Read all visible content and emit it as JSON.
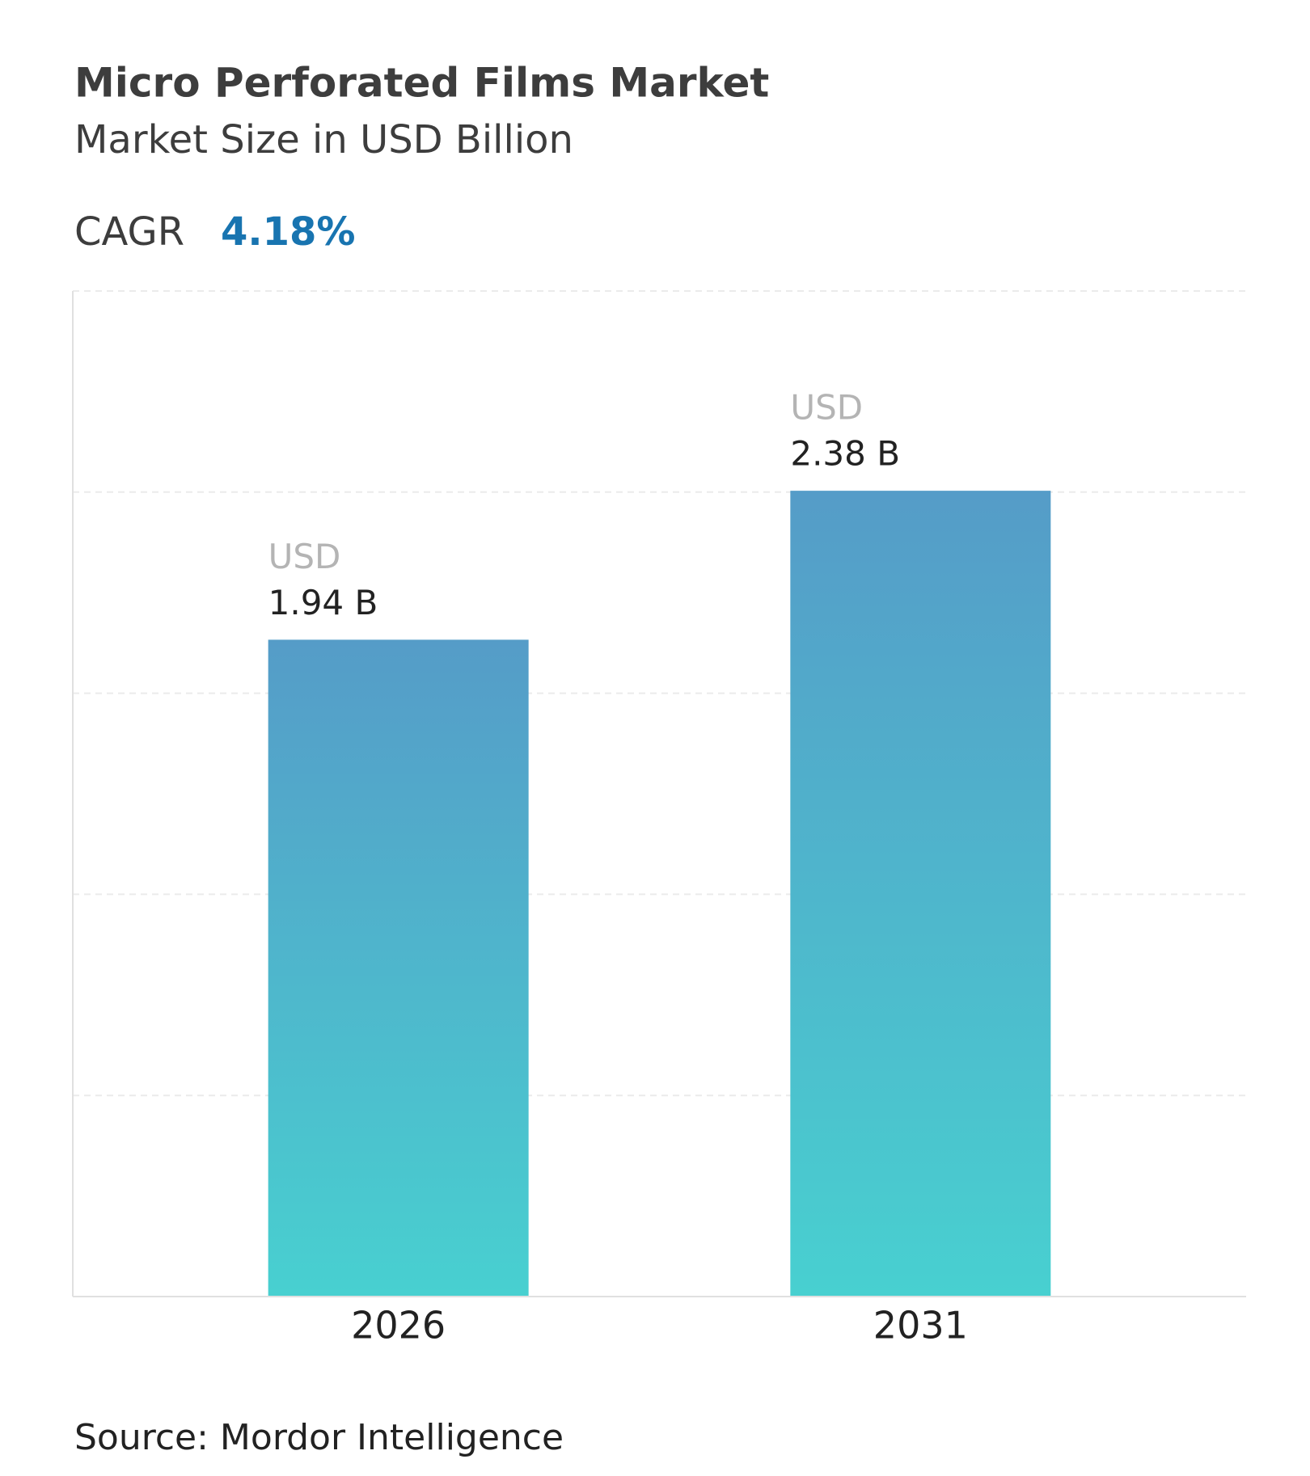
{
  "chart_data": {
    "type": "bar",
    "title": "Micro Perforated Films Market",
    "subtitle": "Market Size in USD Billion",
    "cagr_label": "CAGR",
    "cagr": "4.18%",
    "categories": [
      "2026",
      "2031"
    ],
    "values": [
      1.94,
      2.38
    ],
    "value_labels": [
      "1.94 B",
      "2.38 B"
    ],
    "value_prefix": "USD",
    "colors": [
      "#559cc8",
      "#48d0d0"
    ],
    "ylim": [
      0,
      2.97
    ],
    "grid": true,
    "source": "Source: Mordor Intelligence"
  }
}
